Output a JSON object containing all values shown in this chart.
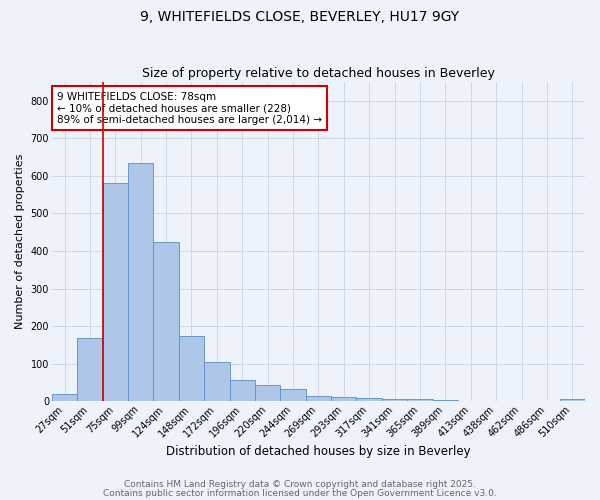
{
  "title1": "9, WHITEFIELDS CLOSE, BEVERLEY, HU17 9GY",
  "title2": "Size of property relative to detached houses in Beverley",
  "xlabel": "Distribution of detached houses by size in Beverley",
  "ylabel": "Number of detached properties",
  "bar_labels": [
    "27sqm",
    "51sqm",
    "75sqm",
    "99sqm",
    "124sqm",
    "148sqm",
    "172sqm",
    "196sqm",
    "220sqm",
    "244sqm",
    "269sqm",
    "293sqm",
    "317sqm",
    "341sqm",
    "365sqm",
    "389sqm",
    "413sqm",
    "438sqm",
    "462sqm",
    "486sqm",
    "510sqm"
  ],
  "bar_values": [
    20,
    168,
    580,
    635,
    425,
    175,
    105,
    57,
    42,
    32,
    15,
    10,
    9,
    6,
    5,
    4,
    2,
    1,
    0,
    0,
    7
  ],
  "bar_color": "#aec6e8",
  "bar_edge_color": "#5a8fc2",
  "grid_color": "#d0d8e8",
  "background_color": "#eef2fa",
  "annotation_text": "9 WHITEFIELDS CLOSE: 78sqm\n← 10% of detached houses are smaller (228)\n89% of semi-detached houses are larger (2,014) →",
  "annotation_box_color": "#ffffff",
  "annotation_box_edge": "#cc0000",
  "vline_color": "#cc0000",
  "vline_x_index": 2,
  "ylim": [
    0,
    850
  ],
  "yticks": [
    0,
    100,
    200,
    300,
    400,
    500,
    600,
    700,
    800
  ],
  "footnote1": "Contains HM Land Registry data © Crown copyright and database right 2025.",
  "footnote2": "Contains public sector information licensed under the Open Government Licence v3.0.",
  "title1_fontsize": 10,
  "title2_fontsize": 9,
  "xlabel_fontsize": 8.5,
  "ylabel_fontsize": 8,
  "tick_fontsize": 7,
  "annotation_fontsize": 7.5,
  "footnote_fontsize": 6.5
}
